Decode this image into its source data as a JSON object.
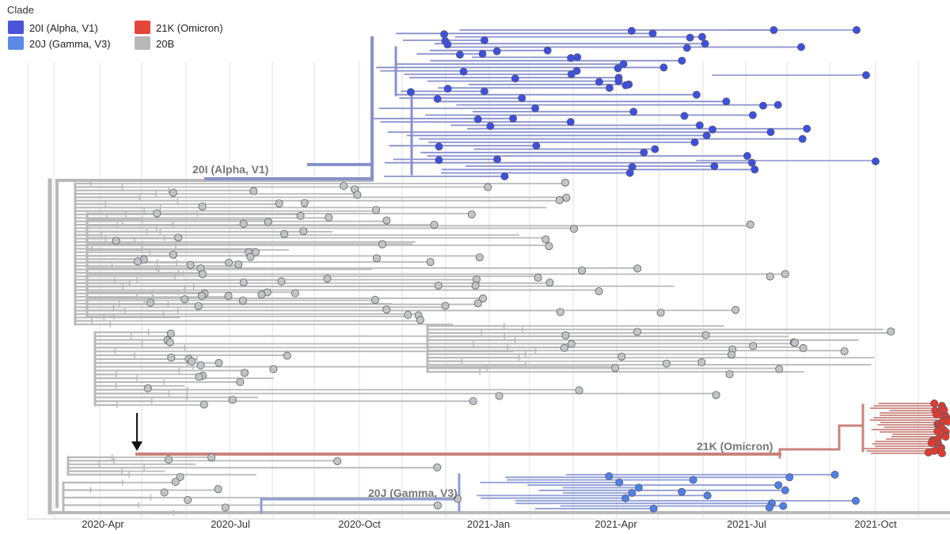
{
  "legend": {
    "title": "Clade",
    "items": [
      {
        "label": "20I (Alpha, V1)",
        "color": "#4a54d8"
      },
      {
        "label": "20J (Gamma, V3)",
        "color": "#5a8ae6"
      },
      {
        "label": "21K (Omicron)",
        "color": "#e4453a"
      },
      {
        "label": "20B",
        "color": "#b8b8b8"
      }
    ]
  },
  "clade_labels": {
    "alpha": "20I (Alpha, V1)",
    "omicron": "21K (Omicron)",
    "gamma": "20J (Gamma, V3)"
  },
  "axis": {
    "ticks": [
      "2020-Apr",
      "2020-Jul",
      "2020-Oct",
      "2021-Jan",
      "2021-Apr",
      "2021-Jul",
      "2021-Oct"
    ]
  },
  "colors": {
    "alpha_branch": "#8890cc",
    "alpha_tip": "#3d4fe0",
    "gamma_branch": "#8d9bd6",
    "gamma_tip": "#4f7fe8",
    "omicron_branch": "#c8837c",
    "omicron_tip": "#e8382d",
    "base_branch": "#b9b9b9",
    "base_tip": "#c2c4c8",
    "grid": "#e6e6e6",
    "arrow": "#111111"
  }
}
